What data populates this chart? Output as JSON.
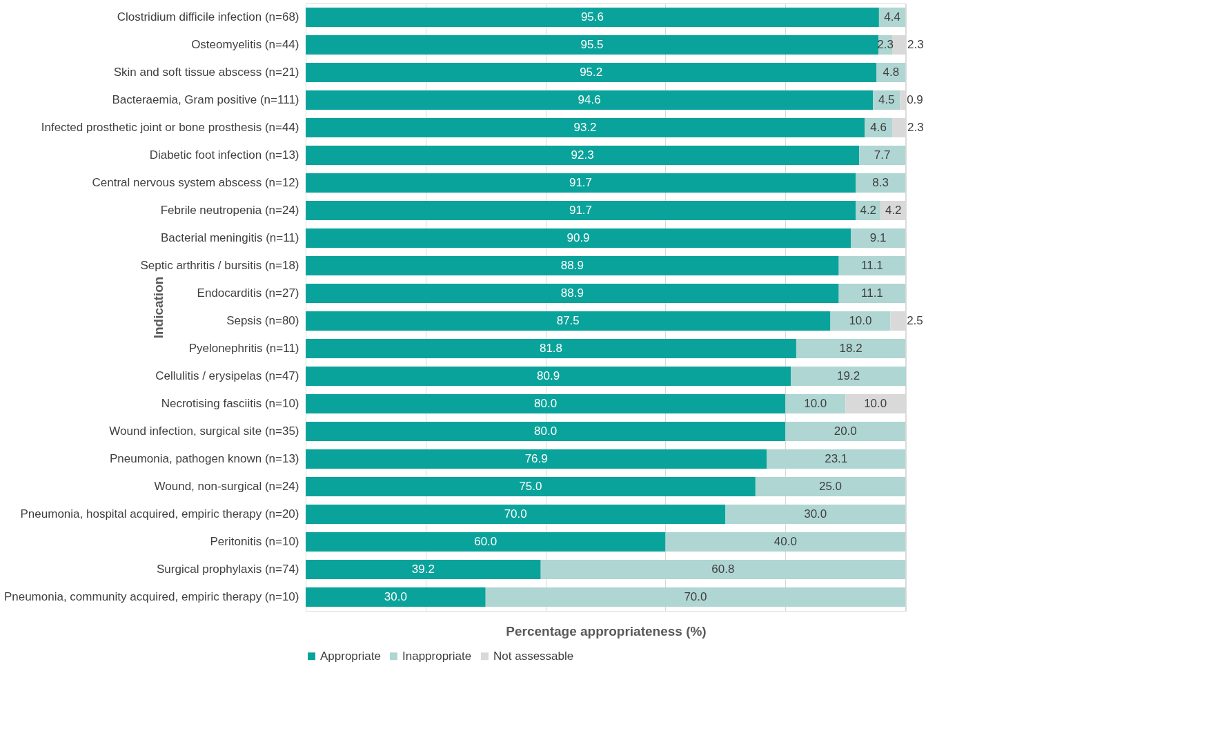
{
  "chart_data": {
    "type": "bar",
    "orientation": "horizontal",
    "stacked": true,
    "xlabel": "Percentage appropriateness (%)",
    "ylabel": "Indication",
    "categories": [
      "Clostridium difficile infection (n=68)",
      "Osteomyelitis (n=44)",
      "Skin and soft tissue abscess (n=21)",
      "Bacteraemia, Gram positive (n=111)",
      "Infected prosthetic joint or bone prosthesis (n=44)",
      "Diabetic foot infection (n=13)",
      "Central nervous system abscess (n=12)",
      "Febrile neutropenia (n=24)",
      "Bacterial meningitis (n=11)",
      "Septic arthritis / bursitis (n=18)",
      "Endocarditis (n=27)",
      "Sepsis (n=80)",
      "Pyelonephritis (n=11)",
      "Cellulitis / erysipelas (n=47)",
      "Necrotising fasciitis (n=10)",
      "Wound infection, surgical site (n=35)",
      "Pneumonia, pathogen known (n=13)",
      "Wound, non-surgical (n=24)",
      "Pneumonia, hospital acquired, empiric therapy (n=20)",
      "Peritonitis (n=10)",
      "Surgical prophylaxis (n=74)",
      "Pneumonia, community acquired, empiric therapy (n=10)"
    ],
    "series": [
      {
        "name": "Appropriate",
        "color": "#0aa39b",
        "values": [
          95.6,
          95.5,
          95.2,
          94.6,
          93.2,
          92.3,
          91.7,
          91.7,
          90.9,
          88.9,
          88.9,
          87.5,
          81.8,
          80.9,
          80.0,
          80.0,
          76.9,
          75.0,
          70.0,
          60.0,
          39.2,
          30.0
        ],
        "value_labels": [
          "95.6",
          "95.5",
          "95.2",
          "94.6",
          "93.2",
          "92.3",
          "91.7",
          "91.7",
          "90.9",
          "88.9",
          "88.9",
          "87.5",
          "81.8",
          "80.9",
          "80.0",
          "80.0",
          "76.9",
          "75.0",
          "70.0",
          "60.0",
          "39.2",
          "30.0"
        ]
      },
      {
        "name": "Inappropriate",
        "color": "#afd6d2",
        "values": [
          4.4,
          2.3,
          4.8,
          4.5,
          4.6,
          7.7,
          8.3,
          4.2,
          9.1,
          11.1,
          11.1,
          10.0,
          18.2,
          19.2,
          10.0,
          20.0,
          23.1,
          25.0,
          30.0,
          40.0,
          60.8,
          70.0
        ],
        "value_labels": [
          "4.4",
          "2.3",
          "4.8",
          "4.5",
          "4.6",
          "7.7",
          "8.3",
          "4.2",
          "9.1",
          "11.1",
          "11.1",
          "10.0",
          "18.2",
          "19.2",
          "10.0",
          "20.0",
          "23.1",
          "25.0",
          "30.0",
          "40.0",
          "60.8",
          "70.0"
        ]
      },
      {
        "name": "Not assessable",
        "color": "#d9d9d9",
        "values": [
          null,
          2.3,
          null,
          0.9,
          2.3,
          null,
          null,
          4.2,
          null,
          null,
          null,
          2.5,
          null,
          null,
          10.0,
          null,
          null,
          null,
          null,
          null,
          null,
          null
        ],
        "value_labels": [
          null,
          "2.3",
          null,
          "0.9",
          "2.3",
          null,
          null,
          "4.2",
          null,
          null,
          null,
          "2.5",
          null,
          null,
          "10.0",
          null,
          null,
          null,
          null,
          null,
          null,
          null
        ]
      }
    ],
    "xlim": [
      0,
      100.1
    ],
    "xticks": [
      {
        "value": 0,
        "label": null
      },
      {
        "value": 20,
        "label": null
      },
      {
        "value": 40,
        "label": null
      },
      {
        "value": 60,
        "label": null
      },
      {
        "value": 80,
        "label": null
      },
      {
        "value": 100,
        "label": null
      }
    ],
    "tick_labels": "y",
    "grid": "x",
    "legend": "bottom"
  }
}
